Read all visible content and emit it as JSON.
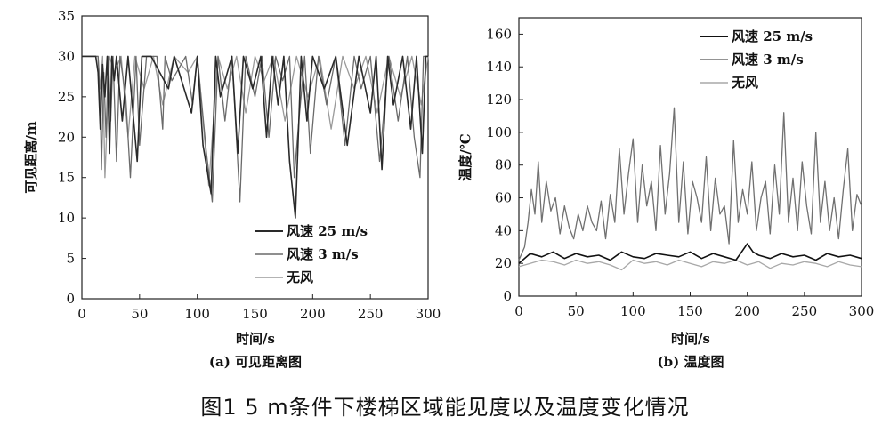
{
  "figure_caption": "图1  5 m条件下楼梯区域能见度以及温度变化情况",
  "chart_data": [
    {
      "type": "line",
      "subtitle": "(a) 可见距离图",
      "xlabel": "时间/s",
      "ylabel": "可见距离/m",
      "xlim": [
        0,
        300
      ],
      "ylim": [
        0,
        35
      ],
      "x_ticks": [
        "0",
        "50",
        "100",
        "150",
        "200",
        "250",
        "300"
      ],
      "y_ticks": [
        "0",
        "5",
        "10",
        "15",
        "20",
        "25",
        "30",
        "35"
      ],
      "legend": [
        "风速 25 m/s",
        "风速 3 m/s",
        "无风"
      ],
      "legend_position": "bottom-right",
      "series": [
        {
          "name": "风速 25 m/s",
          "color": "#2a2a2a",
          "x": [
            0,
            12,
            14,
            16,
            18,
            20,
            22,
            24,
            26,
            28,
            30,
            35,
            40,
            48,
            52,
            60,
            75,
            80,
            95,
            100,
            105,
            112,
            116,
            120,
            130,
            135,
            140,
            148,
            155,
            160,
            165,
            170,
            175,
            180,
            185,
            190,
            195,
            200,
            210,
            220,
            230,
            240,
            250,
            255,
            260,
            265,
            270,
            278,
            285,
            290,
            295,
            298,
            300
          ],
          "y": [
            30,
            30,
            28,
            21,
            29,
            25,
            30,
            18,
            30,
            27,
            30,
            22,
            30,
            17,
            30,
            30,
            26,
            30,
            23,
            30,
            19,
            13,
            30,
            25,
            30,
            18,
            30,
            26,
            30,
            20,
            30,
            24,
            30,
            17,
            10,
            30,
            22,
            30,
            26,
            30,
            19,
            30,
            23,
            30,
            16,
            30,
            24,
            30,
            21,
            30,
            18,
            30,
            30
          ]
        },
        {
          "name": "风速 3 m/s",
          "color": "#6a6a6a",
          "x": [
            0,
            14,
            16,
            17,
            19,
            21,
            23,
            25,
            27,
            30,
            33,
            38,
            42,
            47,
            50,
            56,
            65,
            70,
            72,
            78,
            90,
            96,
            100,
            108,
            113,
            118,
            124,
            130,
            137,
            142,
            150,
            156,
            162,
            168,
            174,
            180,
            184,
            188,
            193,
            198,
            205,
            212,
            220,
            228,
            236,
            242,
            250,
            258,
            266,
            274,
            282,
            288,
            293,
            296,
            300
          ],
          "y": [
            30,
            30,
            24,
            16,
            28,
            20,
            30,
            22,
            30,
            17,
            30,
            25,
            15,
            30,
            19,
            30,
            30,
            21,
            30,
            27,
            30,
            24,
            30,
            18,
            12,
            30,
            22,
            30,
            12,
            30,
            25,
            30,
            20,
            30,
            27,
            30,
            15,
            22,
            30,
            18,
            30,
            24,
            30,
            19,
            30,
            26,
            30,
            17,
            30,
            22,
            30,
            20,
            15,
            30,
            30
          ]
        },
        {
          "name": "无风",
          "color": "#9a9a9a",
          "x": [
            0,
            14,
            16,
            18,
            20,
            24,
            28,
            34,
            40,
            46,
            54,
            62,
            70,
            80,
            92,
            100,
            110,
            118,
            126,
            134,
            142,
            150,
            158,
            166,
            176,
            186,
            196,
            206,
            216,
            226,
            236,
            246,
            256,
            266,
            276,
            286,
            294,
            300
          ],
          "y": [
            30,
            30,
            26,
            30,
            15,
            30,
            28,
            30,
            20,
            30,
            26,
            30,
            24,
            30,
            28,
            30,
            14,
            30,
            26,
            30,
            23,
            30,
            27,
            30,
            22,
            30,
            25,
            30,
            21,
            30,
            26,
            30,
            23,
            30,
            25,
            30,
            24,
            30
          ]
        }
      ]
    },
    {
      "type": "line",
      "subtitle": "(b) 温度图",
      "xlabel": "时间/s",
      "ylabel": "温度/℃",
      "xlim": [
        0,
        300
      ],
      "ylim": [
        0,
        170
      ],
      "x_ticks": [
        "0",
        "50",
        "100",
        "150",
        "200",
        "250",
        "300"
      ],
      "y_ticks": [
        "0",
        "20",
        "40",
        "60",
        "80",
        "100",
        "120",
        "140",
        "160"
      ],
      "legend": [
        "风速 25 m/s",
        "风速 3 m/s",
        "无风"
      ],
      "legend_position": "top-right",
      "series": [
        {
          "name": "风速 25 m/s",
          "color": "#111111",
          "x": [
            0,
            10,
            20,
            30,
            40,
            50,
            60,
            70,
            80,
            90,
            100,
            110,
            120,
            130,
            140,
            150,
            160,
            170,
            180,
            190,
            195,
            200,
            205,
            210,
            220,
            230,
            240,
            250,
            260,
            270,
            280,
            290,
            300
          ],
          "y": [
            20,
            26,
            24,
            27,
            23,
            26,
            24,
            25,
            22,
            27,
            24,
            23,
            26,
            25,
            24,
            27,
            23,
            26,
            24,
            22,
            27,
            32,
            27,
            25,
            23,
            26,
            24,
            25,
            22,
            26,
            24,
            25,
            23
          ]
        },
        {
          "name": "风速 3 m/s",
          "color": "#707070",
          "x": [
            0,
            5,
            8,
            11,
            14,
            17,
            20,
            24,
            28,
            32,
            36,
            40,
            44,
            48,
            52,
            56,
            60,
            64,
            68,
            72,
            76,
            80,
            84,
            88,
            92,
            96,
            100,
            104,
            108,
            112,
            116,
            120,
            124,
            128,
            132,
            136,
            140,
            144,
            148,
            152,
            156,
            160,
            164,
            168,
            172,
            176,
            180,
            184,
            188,
            192,
            196,
            200,
            204,
            208,
            212,
            216,
            220,
            224,
            228,
            232,
            236,
            240,
            244,
            248,
            252,
            256,
            260,
            264,
            268,
            272,
            276,
            280,
            284,
            288,
            292,
            296,
            300
          ],
          "y": [
            22,
            30,
            45,
            65,
            50,
            82,
            45,
            70,
            52,
            60,
            38,
            55,
            42,
            35,
            50,
            40,
            55,
            45,
            40,
            58,
            35,
            62,
            45,
            90,
            50,
            75,
            96,
            45,
            80,
            55,
            70,
            40,
            92,
            50,
            75,
            115,
            45,
            82,
            38,
            70,
            60,
            45,
            85,
            40,
            72,
            50,
            55,
            32,
            95,
            45,
            65,
            50,
            82,
            40,
            60,
            70,
            38,
            80,
            50,
            112,
            45,
            72,
            40,
            82,
            55,
            38,
            100,
            45,
            70,
            40,
            60,
            35,
            65,
            90,
            40,
            62,
            55
          ]
        },
        {
          "name": "无风",
          "color": "#a8a8a8",
          "x": [
            0,
            10,
            20,
            30,
            40,
            50,
            60,
            70,
            80,
            90,
            100,
            110,
            120,
            130,
            140,
            150,
            160,
            170,
            180,
            190,
            200,
            210,
            220,
            230,
            240,
            250,
            260,
            270,
            280,
            290,
            300
          ],
          "y": [
            18,
            20,
            22,
            21,
            19,
            22,
            20,
            21,
            19,
            16,
            22,
            20,
            21,
            19,
            22,
            20,
            18,
            21,
            20,
            22,
            19,
            21,
            17,
            20,
            19,
            21,
            20,
            18,
            21,
            19,
            18
          ]
        }
      ]
    }
  ]
}
